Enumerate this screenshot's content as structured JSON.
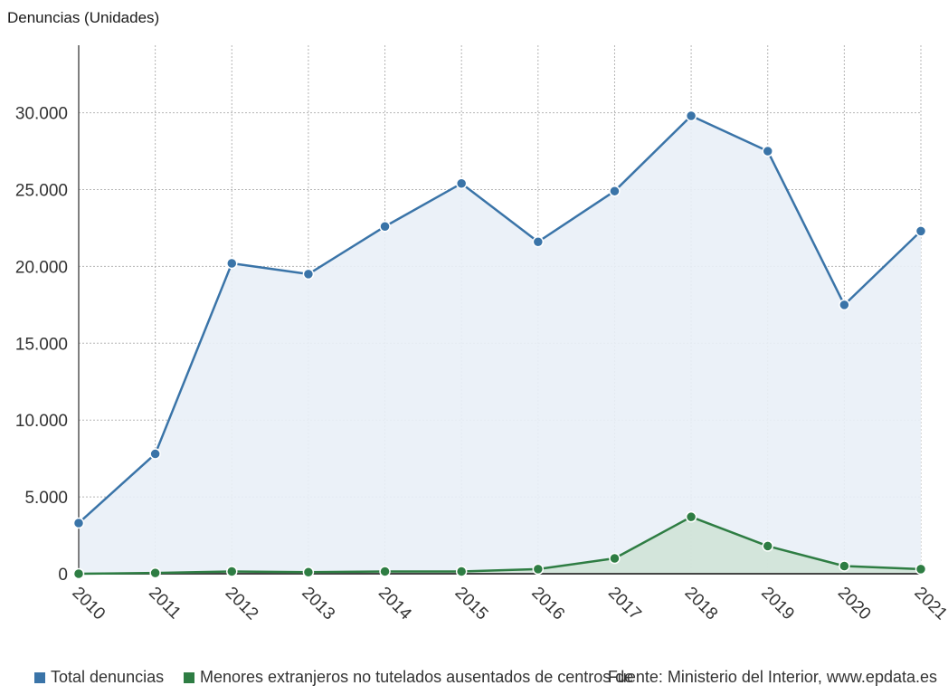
{
  "chart_data": {
    "type": "area",
    "ylabel": "Denuncias (Unidades)",
    "xlabel": "",
    "categories": [
      "2010",
      "2011",
      "2012",
      "2013",
      "2014",
      "2015",
      "2016",
      "2017",
      "2018",
      "2019",
      "2020",
      "2021"
    ],
    "ylim": [
      0,
      35000
    ],
    "yticks": [
      0,
      5000,
      10000,
      15000,
      20000,
      25000,
      30000
    ],
    "ytick_labels": [
      "0",
      "5.000",
      "10.000",
      "15.000",
      "20.000",
      "25.000",
      "30.000"
    ],
    "grid": true,
    "legend_position": "bottom-left",
    "series": [
      {
        "name": "Total denuncias",
        "color": "#3a74a8",
        "fill": "#e9eff7",
        "values": [
          3300,
          7800,
          20200,
          19500,
          22600,
          25400,
          21600,
          24900,
          29800,
          27500,
          17500,
          22300
        ]
      },
      {
        "name": "Menores extranjeros no tutelados ausentados de centros de",
        "color": "#2e7d43",
        "fill": "#cfe3d6",
        "values": [
          0,
          50,
          150,
          100,
          150,
          150,
          300,
          1000,
          3700,
          1800,
          500,
          300
        ]
      }
    ]
  },
  "source": "Fuente: Ministerio del Interior, www.epdata.es"
}
